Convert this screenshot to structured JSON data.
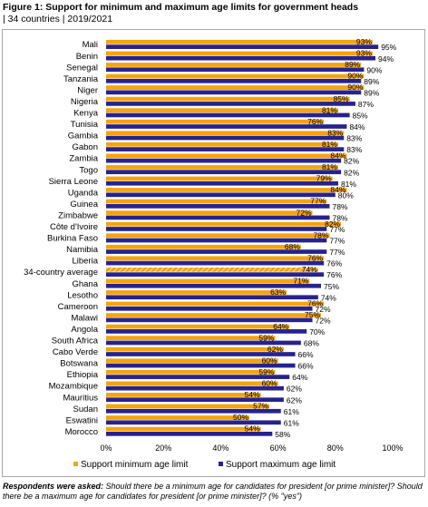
{
  "page": {
    "title": "Figure 1: Support for minimum and maximum age limits for government heads",
    "subtitle": "| 34 countries | 2019/2021",
    "footnote_lead": "Respondents were asked:",
    "footnote_text": " Should there be a minimum age for candidates for president [or prime minister]? Should there be a maximum age for candidates for president [or prime minister]? (% \"yes\")"
  },
  "colors": {
    "min_series": "#f5a40d",
    "max_series": "#26228e",
    "average_hatch": "#f5a40d",
    "average_hatch_line": "#ffffff",
    "frame": "#a7a9ac"
  },
  "chart_data": {
    "type": "bar",
    "orientation": "horizontal",
    "categories": [
      "Mali",
      "Benin",
      "Senegal",
      "Tanzania",
      "Niger",
      "Nigeria",
      "Kenya",
      "Tunisia",
      "Gambia",
      "Gabon",
      "Zambia",
      "Togo",
      "Sierra Leone",
      "Uganda",
      "Guinea",
      "Zimbabwe",
      "Côte d'Ivoire",
      "Burkina Faso",
      "Namibia",
      "Liberia",
      "34-country average",
      "Ghana",
      "Lesotho",
      "Cameroon",
      "Malawi",
      "Angola",
      "South Africa",
      "Cabo Verde",
      "Botswana",
      "Ethiopia",
      "Mozambique",
      "Mauritius",
      "Sudan",
      "Eswatini",
      "Morocco"
    ],
    "series": [
      {
        "name": "Support minimum age limit",
        "values": [
          93,
          93,
          89,
          90,
          90,
          85,
          81,
          76,
          83,
          81,
          84,
          81,
          79,
          84,
          77,
          72,
          82,
          78,
          68,
          76,
          74,
          71,
          63,
          76,
          75,
          64,
          59,
          62,
          60,
          59,
          60,
          54,
          57,
          50,
          54
        ]
      },
      {
        "name": "Support maximum age limit",
        "values": [
          95,
          94,
          90,
          89,
          89,
          87,
          85,
          84,
          83,
          83,
          82,
          82,
          81,
          80,
          78,
          78,
          77,
          77,
          77,
          76,
          76,
          75,
          74,
          72,
          72,
          70,
          68,
          66,
          66,
          64,
          62,
          62,
          61,
          61,
          58
        ]
      }
    ],
    "highlight_category": "34-country average",
    "x_ticks": [
      "0%",
      "20%",
      "40%",
      "60%",
      "80%",
      "100%"
    ],
    "xlim": [
      0,
      100
    ],
    "data_label_suffix": "%",
    "grid": false,
    "legend_position": "bottom"
  }
}
